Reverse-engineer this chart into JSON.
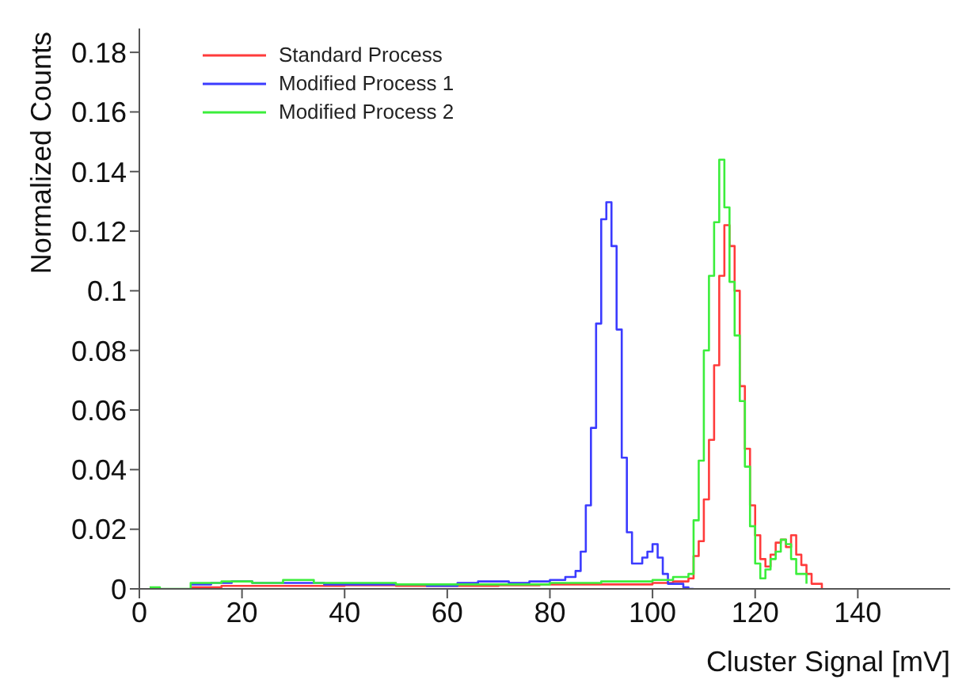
{
  "chart_data": {
    "type": "step",
    "xlabel": "Cluster Signal [mV]",
    "ylabel": "Normalized Counts",
    "xlim": [
      0,
      158
    ],
    "xticks": [
      0,
      20,
      40,
      60,
      80,
      100,
      120,
      140
    ],
    "ylim": [
      0,
      0.188
    ],
    "yticks": [
      0,
      0.02,
      0.04,
      0.06,
      0.08,
      0.1,
      0.12,
      0.14,
      0.16,
      0.18
    ],
    "grid": false,
    "legend": "top left",
    "marker": "none",
    "line_style": "solid",
    "series": [
      {
        "name": "Standard Process",
        "color": "#ff3b3b",
        "x": [
          10,
          16,
          24,
          32,
          40,
          50,
          60,
          70,
          78,
          84,
          92,
          100,
          104,
          107,
          108,
          109,
          110,
          111,
          112,
          113,
          114,
          115,
          116,
          117,
          118,
          119,
          120,
          121,
          122,
          123,
          124,
          125,
          126,
          127,
          128,
          129,
          130,
          131,
          133
        ],
        "values": [
          0.0005,
          0.001,
          0.001,
          0.001,
          0.0012,
          0.001,
          0.001,
          0.0012,
          0.0015,
          0.0015,
          0.0015,
          0.002,
          0.0025,
          0.0035,
          0.011,
          0.016,
          0.03,
          0.05,
          0.075,
          0.105,
          0.122,
          0.115,
          0.1,
          0.068,
          0.047,
          0.028,
          0.018,
          0.01,
          0.0075,
          0.0115,
          0.0155,
          0.0165,
          0.014,
          0.018,
          0.0115,
          0.008,
          0.005,
          0.0017,
          0
        ]
      },
      {
        "name": "Modified Process 1",
        "color": "#3b3bff",
        "x": [
          10,
          14,
          18,
          22,
          26,
          30,
          36,
          42,
          50,
          56,
          62,
          66,
          72,
          76,
          80,
          83,
          85,
          86,
          87,
          88,
          89,
          90,
          91,
          92,
          93,
          94,
          95,
          96,
          97,
          98,
          99,
          100,
          101,
          102,
          103,
          104,
          106,
          107,
          108
        ],
        "values": [
          0.0015,
          0.002,
          0.0025,
          0.002,
          0.002,
          0.002,
          0.0015,
          0.0015,
          0.0015,
          0.001,
          0.002,
          0.0025,
          0.002,
          0.0025,
          0.003,
          0.004,
          0.006,
          0.0125,
          0.028,
          0.054,
          0.089,
          0.124,
          0.1297,
          0.115,
          0.087,
          0.044,
          0.019,
          0.0085,
          0.0085,
          0.0105,
          0.0125,
          0.015,
          0.0105,
          0.005,
          0.0017,
          0.0017,
          0.0005,
          0,
          0
        ]
      },
      {
        "name": "Modified Process 2",
        "color": "#3bee3b",
        "x": [
          2,
          4,
          10,
          16,
          22,
          28,
          34,
          40,
          50,
          60,
          70,
          80,
          90,
          100,
          104,
          107,
          108,
          109,
          110,
          111,
          112,
          113,
          114,
          115,
          116,
          117,
          118,
          119,
          120,
          121,
          122,
          123,
          124,
          125,
          126,
          127,
          128,
          130
        ],
        "values": [
          0.0005,
          0,
          0.002,
          0.0025,
          0.002,
          0.003,
          0.002,
          0.002,
          0.0015,
          0.0015,
          0.0015,
          0.002,
          0.0025,
          0.003,
          0.004,
          0.005,
          0.023,
          0.043,
          0.08,
          0.105,
          0.123,
          0.144,
          0.128,
          0.103,
          0.085,
          0.063,
          0.041,
          0.021,
          0.0085,
          0.0035,
          0.0065,
          0.01,
          0.0125,
          0.0165,
          0.015,
          0.01,
          0.005,
          0.0017
        ]
      }
    ]
  }
}
